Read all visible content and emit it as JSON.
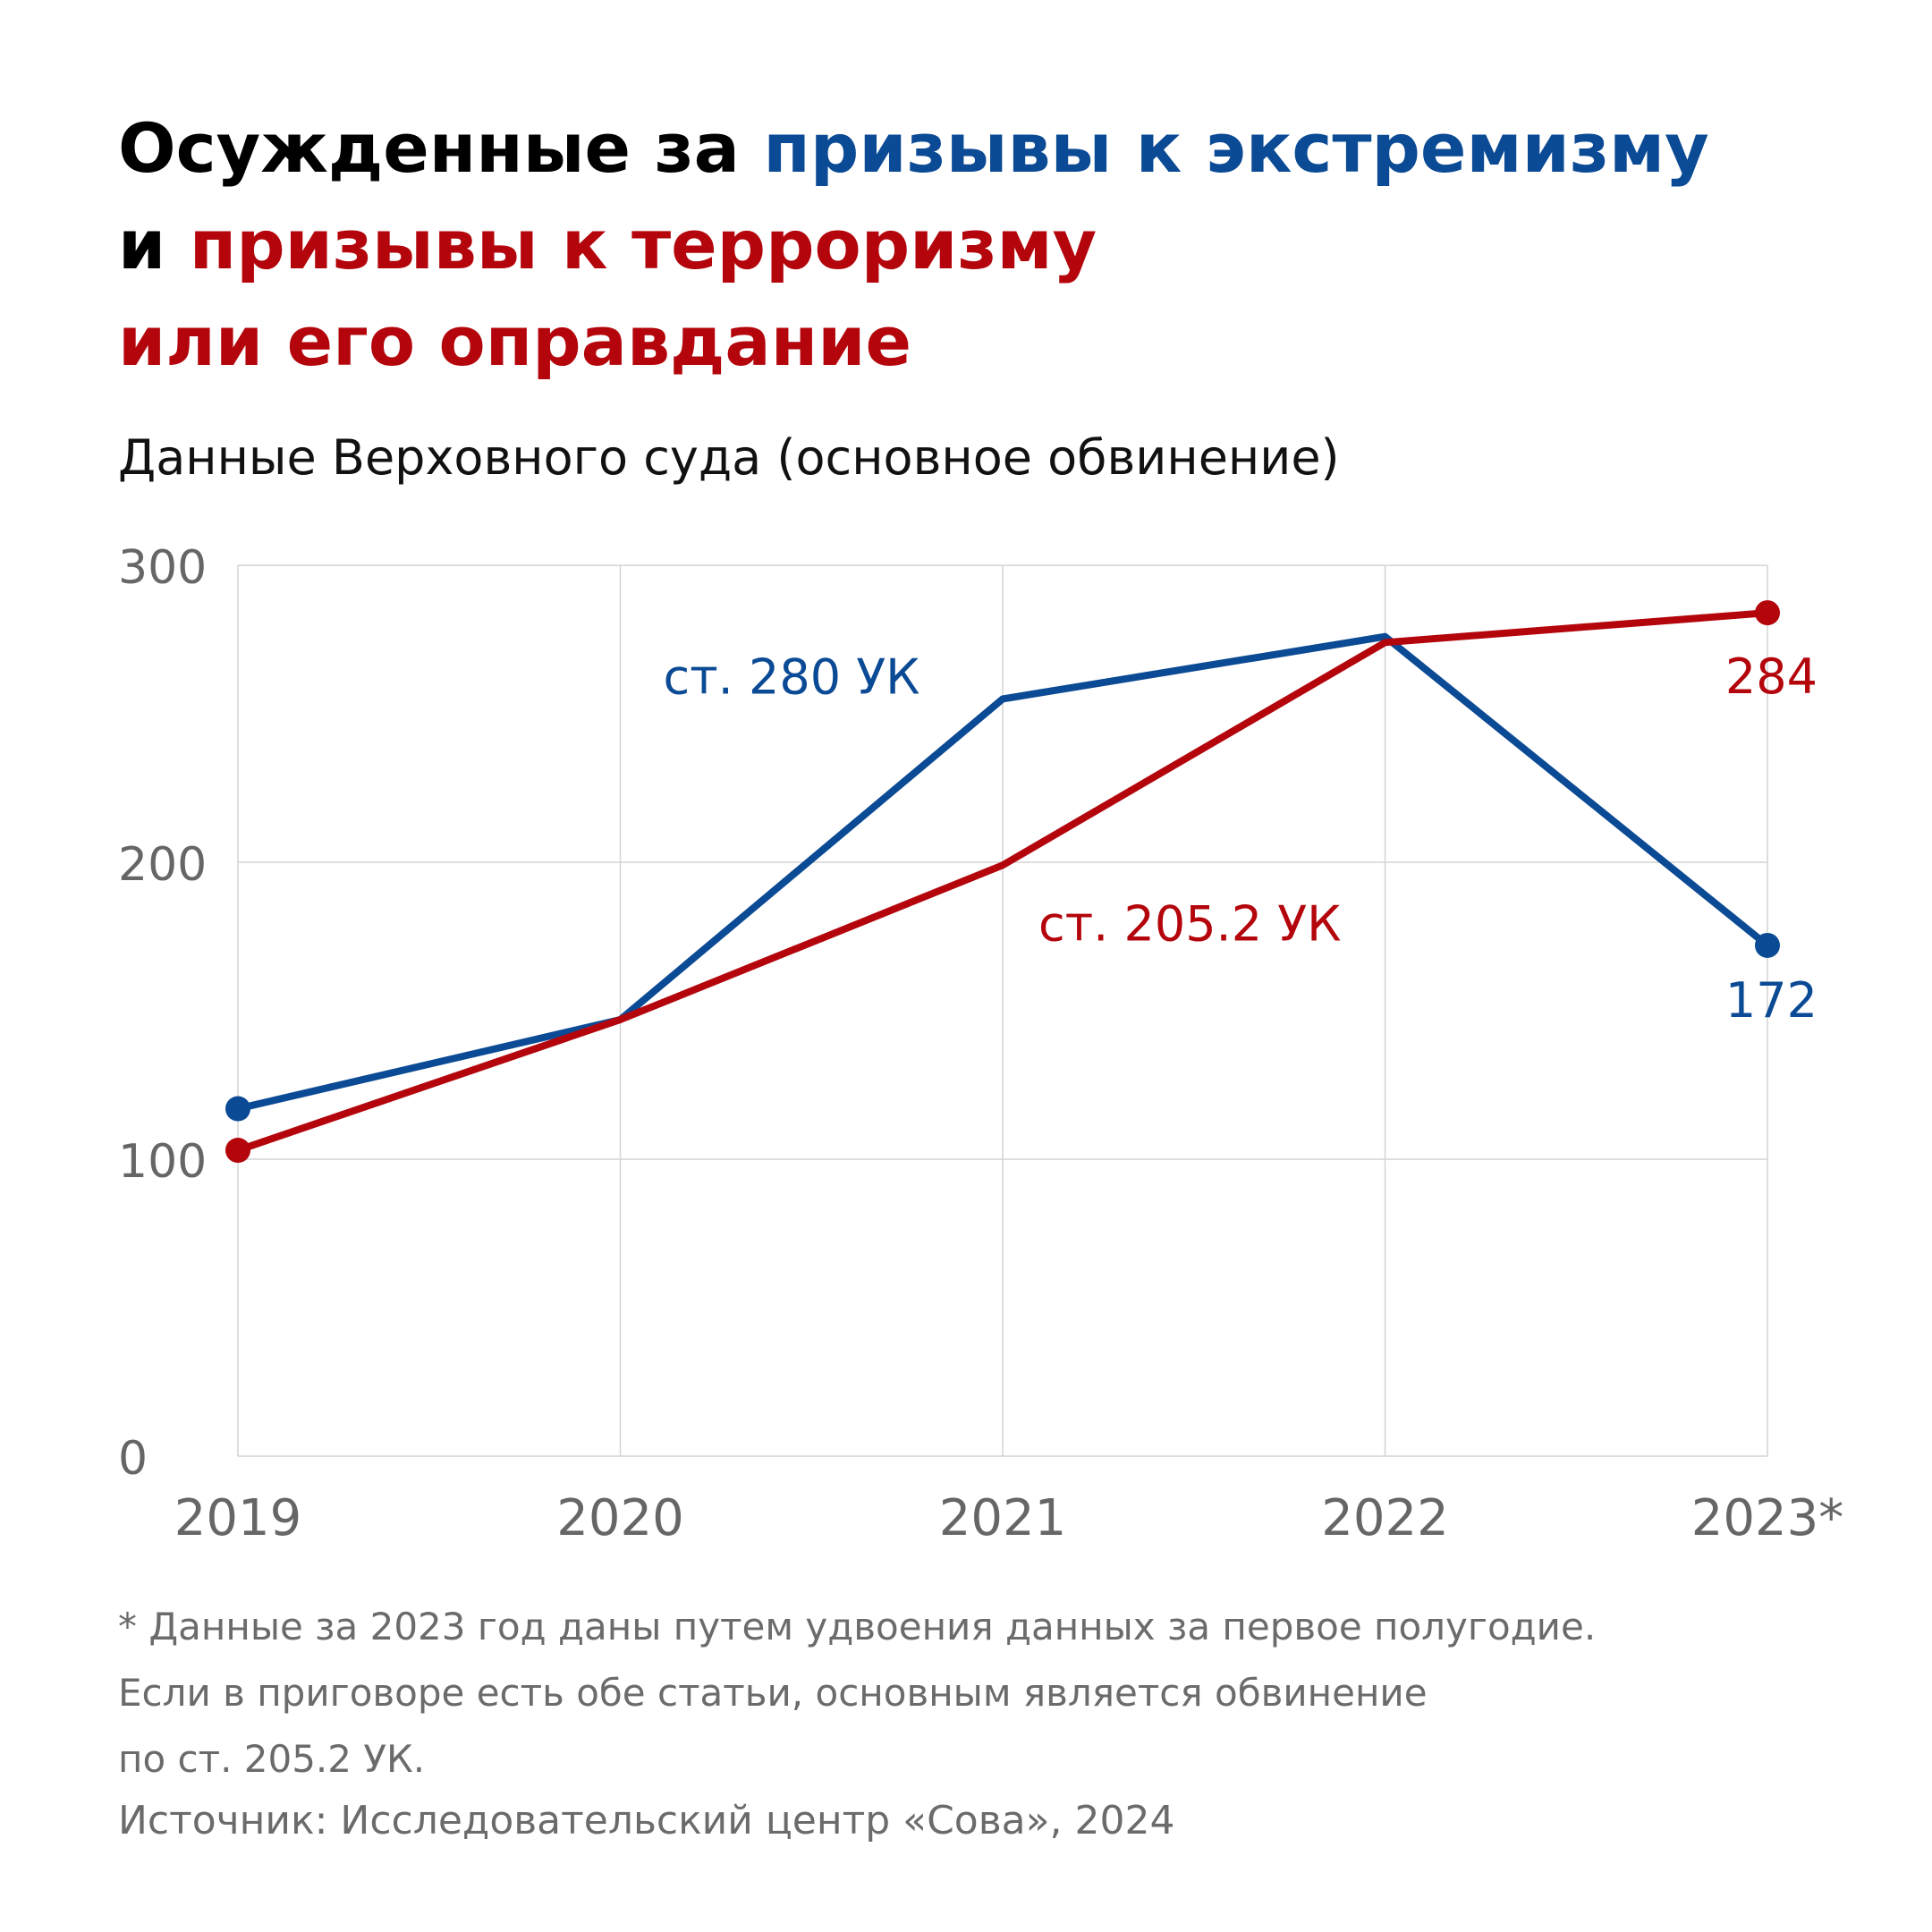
{
  "title": {
    "line1_prefix": "Осужденные за ",
    "line1_highlight": "призывы к экстремизму",
    "line2_prefix": "и ",
    "line2_highlight": "призывы к терроризму",
    "line3_highlight": "или его оправдание"
  },
  "subtitle": "Данные Верховного суда (основное обвинение)",
  "colors": {
    "extremism": "#0b4a94",
    "terrorism": "#b3050b",
    "grid": "#d4d4d4",
    "tick": "#666666"
  },
  "chart_data": {
    "type": "line",
    "categories": [
      "2019",
      "2020",
      "2021",
      "2022",
      "2023*"
    ],
    "ylim": [
      0,
      300
    ],
    "yticks": [
      0,
      100,
      200,
      300
    ],
    "grid": true,
    "series": [
      {
        "name": "ст. 280 УК",
        "color": "#0b4a94",
        "values": [
          117,
          147,
          255,
          276,
          172
        ],
        "end_label": "172"
      },
      {
        "name": "ст. 205.2 УК",
        "color": "#b3050b",
        "values": [
          103,
          147,
          199,
          274,
          284
        ],
        "end_label": "284"
      }
    ]
  },
  "footnote": {
    "line1": "* Данные за 2023 год даны путем удвоения данных за первое полугодие.",
    "line2": "Если в приговоре есть обе статьи, основным является обвинение",
    "line3": "по ст. 205.2 УК."
  },
  "source": "Источник: Исследовательский центр «Сова», 2024"
}
